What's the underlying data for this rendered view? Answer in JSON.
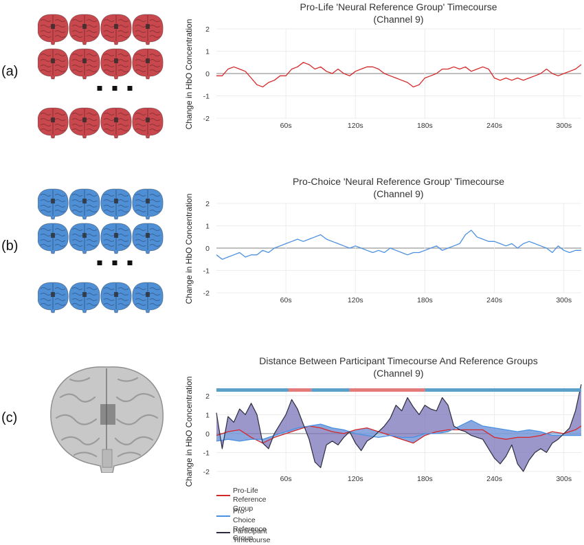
{
  "panel_labels": [
    "(a)",
    "(b)",
    "(c)"
  ],
  "colors": {
    "pro_life": "#d62728",
    "pro_choice": "#4a90e2",
    "participant": "#2b2b3d",
    "distance_fill": "#7a74b8",
    "pro_life_brain": "#c9484d",
    "pro_choice_brain": "#4f8fd6",
    "participant_brain": "#c8c8c8"
  },
  "brain_icons": [
    "brain-icon",
    "brain-icon",
    "brain-3d-icon"
  ],
  "ellipsis": "▪ ▪ ▪",
  "chart_data": [
    {
      "type": "line",
      "title": "Pro-Life 'Neural Reference Group' Timecourse",
      "subtitle": "(Channel 9)",
      "ylabel": "Change in HbO Concentration",
      "ylim": [
        -2,
        2
      ],
      "yticks": [
        2,
        1,
        0,
        -1,
        -2
      ],
      "xlim": [
        0,
        315
      ],
      "xticks": [
        60,
        120,
        180,
        240,
        300
      ],
      "xtick_labels": [
        "60s",
        "120s",
        "180s",
        "240s",
        "300s"
      ],
      "series": [
        {
          "color": "#d62728",
          "x": [
            0,
            5,
            10,
            15,
            20,
            25,
            30,
            35,
            40,
            45,
            50,
            55,
            60,
            65,
            70,
            75,
            80,
            85,
            90,
            95,
            100,
            105,
            110,
            115,
            120,
            125,
            130,
            135,
            140,
            145,
            150,
            155,
            160,
            165,
            170,
            175,
            180,
            185,
            190,
            195,
            200,
            205,
            210,
            215,
            220,
            225,
            230,
            235,
            240,
            245,
            250,
            255,
            260,
            265,
            270,
            275,
            280,
            285,
            290,
            295,
            300,
            305,
            310,
            315
          ],
          "values": [
            -0.1,
            -0.1,
            0.2,
            0.3,
            0.2,
            0.1,
            -0.2,
            -0.5,
            -0.6,
            -0.4,
            -0.3,
            -0.1,
            -0.1,
            0.2,
            0.3,
            0.5,
            0.4,
            0.2,
            0.3,
            0.1,
            0.0,
            0.2,
            0.0,
            -0.1,
            0.1,
            0.2,
            0.3,
            0.3,
            0.2,
            0.0,
            -0.1,
            -0.2,
            -0.3,
            -0.4,
            -0.6,
            -0.5,
            -0.2,
            -0.1,
            0.0,
            0.2,
            0.2,
            0.3,
            0.2,
            0.3,
            0.1,
            0.2,
            0.3,
            0.2,
            -0.2,
            -0.3,
            -0.2,
            -0.3,
            -0.2,
            -0.3,
            -0.2,
            -0.1,
            0.0,
            0.2,
            0.0,
            -0.1,
            0.0,
            0.1,
            0.2,
            0.4
          ]
        }
      ]
    },
    {
      "type": "line",
      "title": "Pro-Choice 'Neural Reference Group' Timecourse",
      "subtitle": "(Channel 9)",
      "ylabel": "Change in HbO Concentration",
      "ylim": [
        -2,
        2
      ],
      "yticks": [
        2,
        1,
        0,
        -1,
        -2
      ],
      "xlim": [
        0,
        315
      ],
      "xticks": [
        60,
        120,
        180,
        240,
        300
      ],
      "xtick_labels": [
        "60s",
        "120s",
        "180s",
        "240s",
        "300s"
      ],
      "series": [
        {
          "color": "#4a90e2",
          "x": [
            0,
            5,
            10,
            15,
            20,
            25,
            30,
            35,
            40,
            45,
            50,
            55,
            60,
            65,
            70,
            75,
            80,
            85,
            90,
            95,
            100,
            105,
            110,
            115,
            120,
            125,
            130,
            135,
            140,
            145,
            150,
            155,
            160,
            165,
            170,
            175,
            180,
            185,
            190,
            195,
            200,
            205,
            210,
            215,
            220,
            225,
            230,
            235,
            240,
            245,
            250,
            255,
            260,
            265,
            270,
            275,
            280,
            285,
            290,
            295,
            300,
            305,
            310,
            315
          ],
          "values": [
            -0.3,
            -0.5,
            -0.4,
            -0.3,
            -0.2,
            -0.4,
            -0.3,
            -0.3,
            -0.1,
            -0.2,
            0.0,
            0.1,
            0.2,
            0.3,
            0.4,
            0.3,
            0.4,
            0.5,
            0.6,
            0.4,
            0.3,
            0.2,
            0.1,
            0.0,
            0.1,
            0.0,
            -0.1,
            -0.2,
            -0.1,
            -0.2,
            0.0,
            -0.1,
            -0.2,
            -0.3,
            -0.2,
            -0.2,
            -0.1,
            0.0,
            0.1,
            -0.1,
            0.0,
            0.1,
            0.2,
            0.6,
            0.8,
            0.5,
            0.4,
            0.3,
            0.3,
            0.2,
            0.1,
            0.2,
            0.0,
            0.2,
            0.3,
            0.2,
            0.1,
            0.0,
            -0.2,
            0.1,
            -0.1,
            -0.2,
            -0.1,
            -0.1
          ]
        }
      ]
    },
    {
      "type": "area",
      "title": "Distance Between Participant Timecourse And Reference Groups",
      "subtitle": "(Channel 9)",
      "ylabel": "Change in HbO Concentration",
      "ylim": [
        -2,
        2.5
      ],
      "yticks": [
        2,
        1,
        0,
        -1,
        -2
      ],
      "xlim": [
        0,
        315
      ],
      "xticks": [
        60,
        120,
        180,
        240,
        300
      ],
      "xtick_labels": [
        "60s",
        "120s",
        "180s",
        "240s",
        "300s"
      ],
      "classification_bar": [
        {
          "start": 0,
          "end": 62,
          "group": "pro_choice"
        },
        {
          "start": 62,
          "end": 82,
          "group": "pro_life"
        },
        {
          "start": 82,
          "end": 115,
          "group": "pro_choice"
        },
        {
          "start": 115,
          "end": 180,
          "group": "pro_life"
        },
        {
          "start": 180,
          "end": 315,
          "group": "pro_choice"
        }
      ],
      "series": [
        {
          "name": "Pro-Life\nReference Group",
          "color": "#d62728",
          "x": [
            0,
            10,
            20,
            30,
            40,
            50,
            60,
            70,
            80,
            90,
            100,
            110,
            120,
            130,
            140,
            150,
            160,
            170,
            180,
            190,
            200,
            210,
            220,
            230,
            240,
            250,
            260,
            270,
            280,
            290,
            300,
            310,
            315
          ],
          "values": [
            -0.1,
            0.1,
            0.2,
            -0.2,
            -0.5,
            -0.2,
            0.0,
            0.2,
            0.4,
            0.3,
            0.1,
            0.0,
            0.2,
            0.3,
            0.1,
            -0.1,
            -0.3,
            -0.5,
            -0.1,
            0.1,
            0.2,
            0.2,
            0.2,
            0.2,
            -0.2,
            -0.3,
            -0.2,
            -0.2,
            -0.1,
            0.1,
            0.0,
            0.2,
            0.4
          ]
        },
        {
          "name": "Pro-Choice\nReference Group",
          "color": "#4a90e2",
          "x": [
            0,
            10,
            20,
            30,
            40,
            50,
            60,
            70,
            80,
            90,
            100,
            110,
            120,
            130,
            140,
            150,
            160,
            170,
            180,
            190,
            200,
            210,
            220,
            230,
            240,
            250,
            260,
            270,
            280,
            290,
            300,
            310,
            315
          ],
          "values": [
            -0.4,
            -0.3,
            -0.4,
            -0.3,
            -0.3,
            -0.1,
            0.1,
            0.3,
            0.4,
            0.5,
            0.3,
            0.2,
            0.0,
            -0.1,
            -0.2,
            -0.1,
            -0.2,
            -0.2,
            0.0,
            0.0,
            0.1,
            0.4,
            0.7,
            0.4,
            0.3,
            0.2,
            0.1,
            0.2,
            0.1,
            -0.1,
            -0.1,
            -0.1,
            -0.1
          ]
        },
        {
          "name": "Participant Timecourse",
          "color": "#2b2b3d",
          "x": [
            0,
            5,
            10,
            15,
            20,
            25,
            30,
            35,
            40,
            45,
            50,
            55,
            60,
            65,
            70,
            75,
            80,
            85,
            90,
            95,
            100,
            105,
            110,
            115,
            120,
            125,
            130,
            135,
            140,
            145,
            150,
            155,
            160,
            165,
            170,
            175,
            180,
            185,
            190,
            195,
            200,
            205,
            210,
            215,
            220,
            225,
            230,
            235,
            240,
            245,
            250,
            255,
            260,
            265,
            270,
            275,
            280,
            285,
            290,
            295,
            300,
            305,
            310,
            315
          ],
          "values": [
            1.1,
            -0.8,
            0.9,
            0.6,
            1.3,
            1.0,
            1.6,
            1.0,
            -0.5,
            -0.8,
            0.0,
            0.5,
            1.0,
            1.8,
            1.3,
            0.5,
            -0.3,
            -1.5,
            -1.8,
            -0.6,
            -0.4,
            -0.6,
            -0.2,
            0.1,
            -0.5,
            -0.9,
            -0.4,
            -0.2,
            0.1,
            0.4,
            0.8,
            1.5,
            1.2,
            1.9,
            1.4,
            1.0,
            1.5,
            1.3,
            1.2,
            1.9,
            1.5,
            0.4,
            0.2,
            0.1,
            -0.1,
            -0.2,
            -0.3,
            -0.8,
            -1.3,
            -1.6,
            -1.2,
            -0.6,
            -1.6,
            -2.0,
            -1.4,
            -1.0,
            -0.8,
            -1.0,
            -0.5,
            -0.3,
            0.0,
            0.3,
            1.2,
            2.6
          ]
        }
      ],
      "legend": "bottom-left"
    }
  ]
}
